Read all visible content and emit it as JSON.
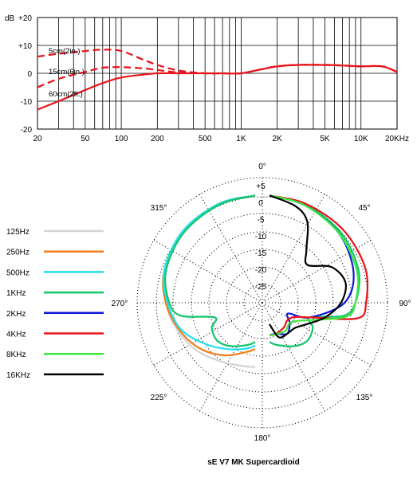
{
  "frequency_response": {
    "y_unit": "dB",
    "y_ticks": [
      "+20",
      "+10",
      "0",
      "-10",
      "-20"
    ],
    "x_ticks": [
      "20",
      "50",
      "100",
      "200",
      "500",
      "1K",
      "2K",
      "5K",
      "10K",
      "20KHz"
    ],
    "curve_labels": {
      "c5cm": "5cm(2in.)",
      "c15cm": "15cm(6in.)",
      "c60cm": "60cm(2ft.)"
    },
    "line_color": "#e8141b"
  },
  "polar": {
    "angle_labels": {
      "a0": "0°",
      "a45": "45°",
      "a90": "90°",
      "a135": "135°",
      "a180": "180°",
      "a225": "225°",
      "a270": "270°",
      "a315": "315°"
    },
    "ring_labels": [
      "+5",
      "0",
      "-5",
      "-10",
      "-15",
      "-20",
      "-25"
    ]
  },
  "legend": [
    {
      "label": "125Hz",
      "color": "#d3d3d3"
    },
    {
      "label": "250Hz",
      "color": "#f07d1a"
    },
    {
      "label": "500Hz",
      "color": "#22e0f0"
    },
    {
      "label": "1KHz",
      "color": "#13c46a"
    },
    {
      "label": "2KHz",
      "color": "#1018d8"
    },
    {
      "label": "4KHz",
      "color": "#e8141b"
    },
    {
      "label": "8KHz",
      "color": "#3ee83e"
    },
    {
      "label": "16KHz",
      "color": "#000000"
    }
  ],
  "caption": "sE V7 MK Supercardioid",
  "chart_data": [
    {
      "type": "line",
      "xscale": "log",
      "xlim": [
        20,
        20000
      ],
      "ylim": [
        -20,
        20
      ],
      "ylabel": "dB",
      "grid": true,
      "series": [
        {
          "name": "5cm(2in.)",
          "dash": true,
          "x": [
            20,
            30,
            50,
            70,
            100,
            150,
            200,
            300,
            500,
            700,
            1000,
            1500,
            2000,
            3000,
            5000,
            7000,
            10000,
            15000,
            20000
          ],
          "y": [
            6,
            7,
            8,
            8.5,
            8,
            5,
            3,
            1,
            0,
            0,
            0,
            1.5,
            2.5,
            3,
            3,
            2.8,
            2.5,
            2.5,
            0.5
          ]
        },
        {
          "name": "15cm(6in.)",
          "dash": true,
          "x": [
            20,
            30,
            50,
            70,
            100,
            150,
            200,
            300,
            500,
            700,
            1000,
            1500,
            2000,
            3000,
            5000,
            7000,
            10000,
            15000,
            20000
          ],
          "y": [
            -5,
            -2,
            0.5,
            2,
            2.2,
            1.8,
            1.2,
            0.3,
            0,
            0,
            0,
            1.5,
            2.5,
            3,
            3,
            2.8,
            2.5,
            2.5,
            0.5
          ]
        },
        {
          "name": "60cm(2ft.)",
          "dash": false,
          "x": [
            20,
            30,
            50,
            70,
            100,
            150,
            200,
            300,
            500,
            700,
            1000,
            1500,
            2000,
            3000,
            5000,
            7000,
            10000,
            15000,
            20000
          ],
          "y": [
            -13,
            -10,
            -6,
            -3.5,
            -1.5,
            -0.5,
            0,
            0,
            0,
            0,
            0,
            1.5,
            2.5,
            3,
            3,
            2.8,
            2.5,
            2.5,
            0.5
          ]
        }
      ]
    },
    {
      "type": "polar",
      "rlim": [
        -30,
        5
      ],
      "rticks": [
        5,
        0,
        -5,
        -10,
        -15,
        -20,
        -25
      ],
      "series": [
        {
          "name": "125Hz",
          "angles": [
            0,
            20,
            45,
            70,
            90,
            110,
            130,
            150,
            170,
            180
          ],
          "db": [
            0,
            -0.5,
            -1.5,
            -3,
            -5,
            -7,
            -9,
            -11,
            -12,
            -12
          ]
        },
        {
          "name": "250Hz",
          "angles": [
            0,
            20,
            45,
            70,
            90,
            110,
            130,
            150,
            170,
            180
          ],
          "db": [
            0,
            -0.5,
            -1.5,
            -3,
            -5,
            -7.5,
            -10,
            -13,
            -16,
            -17
          ]
        },
        {
          "name": "500Hz",
          "angles": [
            0,
            20,
            45,
            70,
            90,
            110,
            130,
            150,
            170,
            180
          ],
          "db": [
            0,
            -0.5,
            -1.5,
            -3,
            -5.5,
            -8,
            -12,
            -15,
            -17,
            -18
          ]
        },
        {
          "name": "1KHz",
          "angles": [
            0,
            20,
            45,
            70,
            90,
            100,
            110,
            120,
            135,
            150,
            170,
            180
          ],
          "db": [
            0,
            -0.8,
            -2,
            -3.5,
            -6,
            -9,
            -18,
            -16,
            -15,
            -16,
            -18,
            -19
          ]
        },
        {
          "name": "2KHz",
          "angles": [
            0,
            20,
            45,
            70,
            90,
            110,
            120,
            135,
            150,
            165,
            180
          ],
          "db": [
            0,
            -1,
            -2.5,
            -5,
            -9,
            -18,
            -24,
            -22,
            -20,
            -21,
            -21
          ]
        },
        {
          "name": "4KHz",
          "angles": [
            0,
            20,
            45,
            70,
            90,
            100,
            110,
            120,
            135,
            150,
            170,
            180
          ],
          "db": [
            0,
            -0.5,
            -1,
            -1.5,
            -3,
            -5,
            -18,
            -22,
            -23,
            -22,
            -21,
            -21
          ]
        },
        {
          "name": "8KHz",
          "angles": [
            0,
            20,
            45,
            70,
            90,
            100,
            110,
            120,
            135,
            150,
            170,
            180
          ],
          "db": [
            0,
            -1,
            -2.5,
            -4,
            -6,
            -8,
            -16,
            -20,
            -22,
            -21,
            -21,
            -21
          ]
        },
        {
          "name": "16KHz",
          "angles": [
            0,
            15,
            25,
            35,
            45,
            60,
            75,
            90,
            105,
            120,
            135,
            150,
            165,
            180
          ],
          "db": [
            0,
            -2,
            -5,
            -12,
            -15,
            -10,
            -8,
            -10,
            -14,
            -18,
            -20,
            -20,
            -20,
            -24
          ]
        }
      ]
    }
  ]
}
